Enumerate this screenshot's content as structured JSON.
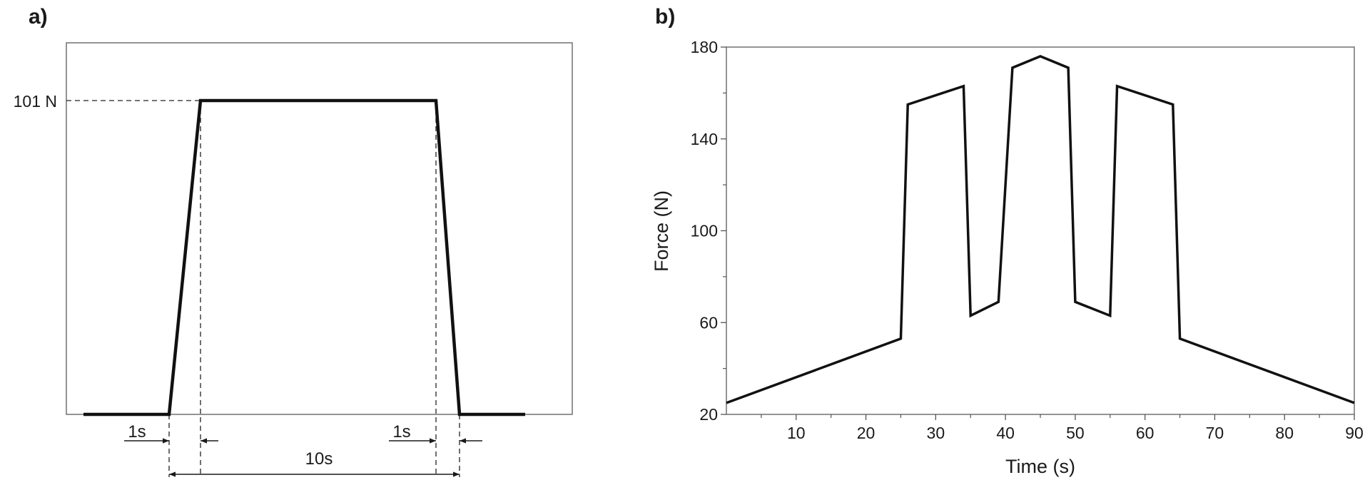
{
  "chart_data": [
    {
      "panel_label": "a)",
      "type": "line",
      "series": [
        {
          "x": [
            0,
            1,
            11,
            12
          ],
          "y": [
            0,
            101,
            101,
            0
          ]
        }
      ],
      "annotations": {
        "level_label": "101 N",
        "ramp_up_label": "1s",
        "ramp_down_label": "1s",
        "hold_label": "10s"
      },
      "frame": true,
      "grid": false
    },
    {
      "panel_label": "b)",
      "type": "line",
      "xlabel": "Time (s)",
      "ylabel": "Force (N)",
      "xlim": [
        0,
        90
      ],
      "ylim": [
        20,
        180
      ],
      "xticks": [
        10,
        20,
        30,
        40,
        50,
        60,
        70,
        80,
        90
      ],
      "yticks": [
        20,
        60,
        100,
        140,
        180
      ],
      "grid": false,
      "series": [
        {
          "x": [
            0,
            25,
            26,
            34,
            35,
            39,
            41,
            45,
            49,
            50,
            55,
            56,
            64,
            65,
            90
          ],
          "y": [
            25,
            53,
            155,
            163,
            63,
            69,
            171,
            176,
            171,
            69,
            63,
            163,
            155,
            53,
            25
          ]
        }
      ]
    }
  ]
}
